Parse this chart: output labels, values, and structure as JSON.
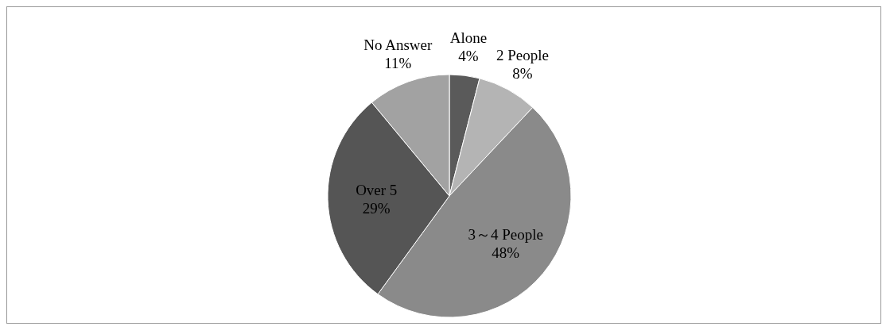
{
  "chart_data": {
    "type": "pie",
    "categories": [
      "Alone",
      "2 People",
      "3～4 People",
      "Over 5",
      "No Answer"
    ],
    "values": [
      4,
      8,
      48,
      29,
      11
    ],
    "value_labels": [
      "4%",
      "8%",
      "48%",
      "29%",
      "11%"
    ],
    "colors": [
      "#5a5a5a",
      "#b4b4b4",
      "#8a8a8a",
      "#555555",
      "#a2a2a2"
    ],
    "legend": false
  }
}
